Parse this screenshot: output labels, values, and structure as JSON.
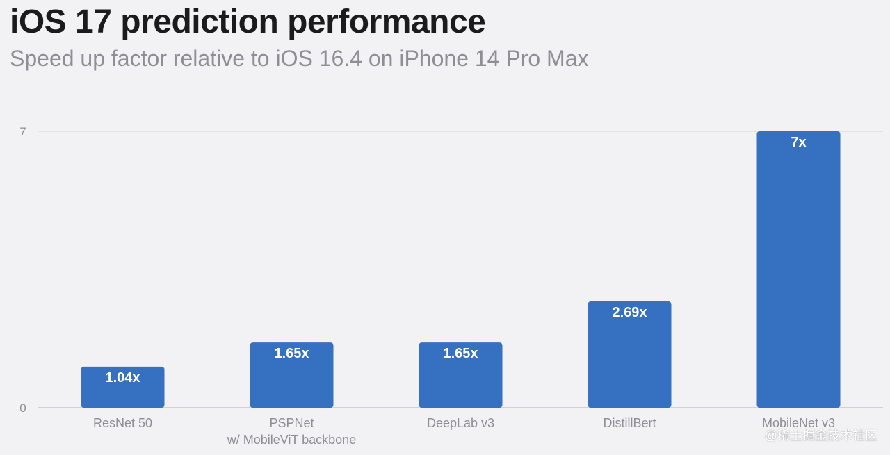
{
  "title": "iOS 17 prediction performance",
  "subtitle": "Speed up factor relative to iOS 16.4 on iPhone 14 Pro Max",
  "watermark": "@稀土掘金技术社区",
  "colors": {
    "bar": "#3670c0",
    "grid": "#d4d4d8",
    "axis": "#c8c8cc",
    "text_muted": "#8e8e93",
    "background": "#f2f2f4"
  },
  "chart_data": {
    "type": "bar",
    "categories": [
      [
        "ResNet 50"
      ],
      [
        "PSPNet",
        "w/ MobileViT backbone"
      ],
      [
        "DeepLab v3"
      ],
      [
        "DistillBert"
      ],
      [
        "MobileNet v3"
      ]
    ],
    "values": [
      1.04,
      1.65,
      1.65,
      2.69,
      7
    ],
    "data_labels": [
      "1.04x",
      "1.65x",
      "1.65x",
      "2.69x",
      "7x"
    ],
    "yticks": [
      0,
      7
    ],
    "ylim": [
      0,
      7
    ],
    "xlabel": "",
    "ylabel": "",
    "grid": true,
    "legend": "none"
  }
}
